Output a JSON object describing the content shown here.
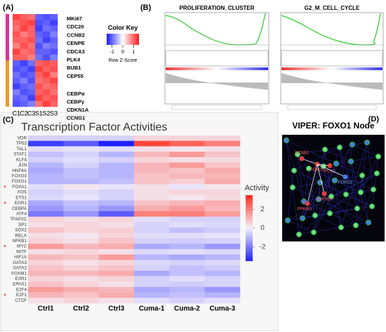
{
  "panelA": {
    "label": "(A)",
    "columns": [
      "C1",
      "C2",
      "C3",
      "S1",
      "S2",
      "S3"
    ],
    "matrix": [
      [
        1.2,
        1.0,
        0.9,
        -1.0,
        -1.1,
        -1.0
      ],
      [
        1.0,
        1.1,
        1.2,
        -1.1,
        -1.0,
        -1.2
      ],
      [
        0.9,
        1.2,
        1.0,
        -1.2,
        -0.9,
        -1.0
      ],
      [
        1.1,
        0.8,
        1.0,
        -1.0,
        -1.1,
        -0.8
      ],
      [
        1.0,
        1.0,
        1.1,
        -0.9,
        -1.2,
        -1.0
      ],
      [
        0.8,
        1.1,
        0.9,
        -1.1,
        -0.8,
        -0.9
      ],
      [
        1.2,
        0.9,
        1.0,
        -1.0,
        -1.0,
        -1.1
      ],
      [
        1.0,
        1.0,
        0.8,
        -0.9,
        -1.1,
        -0.8
      ],
      [
        -1.0,
        -1.2,
        -0.9,
        1.0,
        1.1,
        1.0
      ],
      [
        -1.1,
        -1.0,
        -1.2,
        1.2,
        1.0,
        1.1
      ],
      [
        -0.9,
        -1.1,
        -1.0,
        1.0,
        1.2,
        0.8
      ],
      [
        -1.0,
        -0.8,
        -1.1,
        0.9,
        1.0,
        1.2
      ],
      [
        -1.2,
        -1.0,
        -0.9,
        1.1,
        0.9,
        1.0
      ],
      [
        -0.8,
        -1.1,
        -1.0,
        1.0,
        1.1,
        0.9
      ],
      [
        -1.0,
        -0.9,
        -1.2,
        1.2,
        1.0,
        1.1
      ],
      [
        -1.1,
        -1.0,
        -0.8,
        0.9,
        1.2,
        1.0
      ]
    ],
    "genes_up": [
      "MKi67",
      "CDC20",
      "CCNB2",
      "CENPE",
      "CDCA3",
      "PLK4",
      "BUB1",
      "CEP55"
    ],
    "genes_down": [
      "CEBPα",
      "CEBPγ",
      "CDKN1A",
      "CCNG1"
    ],
    "color_key": {
      "title": "Color Key",
      "subtitle": "Row Z-Score",
      "lim": [
        -1.5,
        1.5
      ],
      "ticks": [
        -1,
        0,
        1
      ]
    }
  },
  "panelB": {
    "label": "(B)",
    "plots": [
      "PROLIFERATION_CLUSTER",
      "G2_M_CELL_CYCLE"
    ]
  },
  "panelC": {
    "label": "(C)",
    "title": "Transcription Factor Activities",
    "columns": [
      "Ctrl1",
      "Ctrl2",
      "Ctrl3",
      "Cuma-1",
      "Cuma-2",
      "Cuma-3"
    ],
    "colorbar": {
      "title": "Activity",
      "lim": [
        -3.5,
        3.5
      ],
      "ticks": [
        2,
        0,
        -2
      ]
    },
    "rows": [
      {
        "name": "VDR",
        "values": [
          -0.5,
          -0.5,
          -0.5,
          0.5,
          0.5,
          0.5
        ]
      },
      {
        "name": "TP53",
        "values": [
          -3,
          -2.5,
          -3.5,
          3,
          2.5,
          2
        ]
      },
      {
        "name": "TAL1",
        "values": [
          -0.3,
          -0.2,
          -0.3,
          0.3,
          0.2,
          0.3
        ]
      },
      {
        "name": "STAT1",
        "values": [
          -0.8,
          -0.5,
          -1,
          1,
          1.5,
          0.8
        ]
      },
      {
        "name": "KLF4",
        "values": [
          -0.5,
          -0.3,
          -0.5,
          0.5,
          0.3,
          0.4
        ]
      },
      {
        "name": "JUN",
        "values": [
          -1,
          -0.5,
          -1,
          1,
          1.5,
          0.8
        ]
      },
      {
        "name": "HNF4A",
        "values": [
          -1.2,
          -0.8,
          -1,
          1,
          0.8,
          1.2
        ]
      },
      {
        "name": "FOXO3",
        "values": [
          -1,
          -0.8,
          -1,
          0.8,
          1,
          1
        ]
      },
      {
        "name": "FOXO1",
        "values": [
          -1,
          -1,
          -0.8,
          0.8,
          0.6,
          1.2
        ]
      },
      {
        "name": "FOXA1",
        "star": "*",
        "values": [
          -0.3,
          0.2,
          -0.2,
          0.3,
          -0.2,
          0.2
        ]
      },
      {
        "name": "FOS",
        "values": [
          -0.5,
          -0.3,
          -0.5,
          0.3,
          0.5,
          0.5
        ]
      },
      {
        "name": "ETS1",
        "values": [
          -0.4,
          -0.2,
          -0.5,
          0.3,
          0.2,
          0.4
        ]
      },
      {
        "name": "EGR1",
        "star": "*",
        "values": [
          -1.2,
          -0.8,
          -1,
          0.8,
          1,
          1.2
        ]
      },
      {
        "name": "CEBPA",
        "values": [
          -1.5,
          -1,
          -1.5,
          1.2,
          1.5,
          1
        ]
      },
      {
        "name": "ATF4",
        "values": [
          -2,
          -1.5,
          -2.5,
          2,
          2,
          1.5
        ]
      },
      {
        "name": "TFAP2C",
        "values": [
          0.5,
          0.3,
          0.5,
          -0.3,
          -0.5,
          -0.5
        ]
      },
      {
        "name": "SP1",
        "values": [
          0.3,
          0.5,
          0.3,
          -0.5,
          -0.3,
          -0.4
        ]
      },
      {
        "name": "SOX2",
        "values": [
          0.8,
          0.5,
          0.6,
          -0.5,
          -0.8,
          -0.6
        ]
      },
      {
        "name": "RELA",
        "values": [
          0.3,
          0.2,
          0.5,
          -0.3,
          -0.3,
          -0.2
        ]
      },
      {
        "name": "NFKB1",
        "values": [
          0.5,
          0.3,
          0.8,
          -0.5,
          -0.6,
          -0.5
        ]
      },
      {
        "name": "MYC",
        "star": "*",
        "values": [
          1.5,
          1,
          1.2,
          -1.2,
          -1,
          -1.5
        ]
      },
      {
        "name": "MITF",
        "values": [
          0.3,
          0.5,
          0.3,
          -0.4,
          -0.3,
          -0.4
        ]
      },
      {
        "name": "HIF1A",
        "values": [
          1,
          0.8,
          1.5,
          -1,
          -1.2,
          -1
        ]
      },
      {
        "name": "GATA3",
        "values": [
          0.5,
          0.3,
          0.5,
          -0.4,
          -0.5,
          -0.4
        ]
      },
      {
        "name": "GATA2",
        "values": [
          0.8,
          0.5,
          0.8,
          -0.5,
          -0.8,
          -0.6
        ]
      },
      {
        "name": "FOXM1",
        "values": [
          1,
          1,
          1.2,
          -1.2,
          -0.8,
          -1
        ]
      },
      {
        "name": "ESR1",
        "values": [
          0.5,
          0.3,
          0.5,
          -0.5,
          -0.3,
          -0.5
        ]
      },
      {
        "name": "EPAS1",
        "values": [
          0.8,
          0.5,
          0.3,
          -0.5,
          -0.6,
          -0.5
        ]
      },
      {
        "name": "E2F4",
        "values": [
          1.5,
          1.2,
          1,
          -1.2,
          -1,
          -1.5
        ]
      },
      {
        "name": "E2F1",
        "star": "*",
        "values": [
          1,
          0.8,
          1.2,
          -1,
          -0.8,
          -1
        ]
      },
      {
        "name": "CTCF",
        "values": [
          0.3,
          0.5,
          0.3,
          -0.3,
          -0.5,
          -0.3
        ]
      }
    ]
  },
  "panelD": {
    "label": "(D)",
    "title": "VIPER: FOXO1 Node",
    "nodes": [
      "CCNB2",
      "FOXO1",
      "PCK1",
      "CDKN1A",
      "PPARG",
      "FOXO3"
    ]
  }
}
